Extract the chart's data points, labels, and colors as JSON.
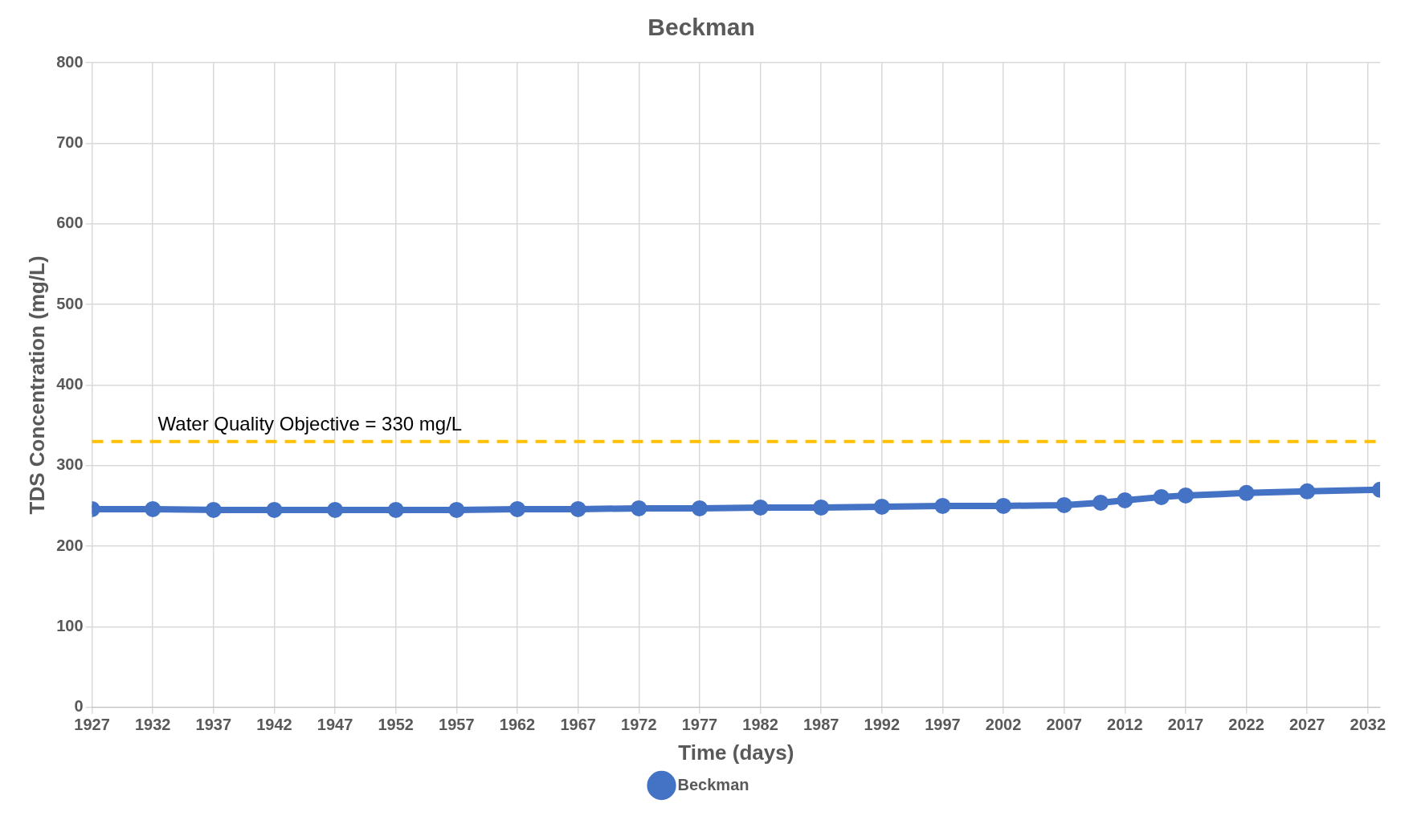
{
  "chart_data": {
    "type": "line",
    "title": "Beckman",
    "xlabel": "Time (days)",
    "ylabel": "TDS Concentration (mg/L)",
    "x": [
      1927,
      1932,
      1937,
      1942,
      1947,
      1952,
      1957,
      1962,
      1967,
      1972,
      1977,
      1982,
      1987,
      1992,
      1997,
      2002,
      2007,
      2010,
      2012,
      2015,
      2017,
      2022,
      2027,
      2033
    ],
    "series": [
      {
        "name": "Beckman",
        "color": "#4472c4",
        "values": [
          246,
          246,
          245,
          245,
          245,
          245,
          245,
          246,
          246,
          247,
          247,
          248,
          248,
          249,
          250,
          250,
          251,
          254,
          257,
          261,
          263,
          266,
          268,
          270
        ]
      }
    ],
    "xlim": [
      1927,
      2033
    ],
    "xticks": [
      1927,
      1932,
      1937,
      1942,
      1947,
      1952,
      1957,
      1962,
      1967,
      1972,
      1977,
      1982,
      1987,
      1992,
      1997,
      2002,
      2007,
      2012,
      2017,
      2022,
      2027,
      2032
    ],
    "ylim": [
      0,
      800
    ],
    "yticks": [
      0,
      100,
      200,
      300,
      400,
      500,
      600,
      700,
      800
    ],
    "ref_lines": [
      {
        "axis": "y",
        "value": 330,
        "label": "Water Quality Objective = 330 mg/L",
        "color": "#ffc000",
        "line_style": "dashed"
      }
    ],
    "grid": true,
    "legend": "bottom",
    "marker": "circle",
    "line_style": "solid"
  }
}
